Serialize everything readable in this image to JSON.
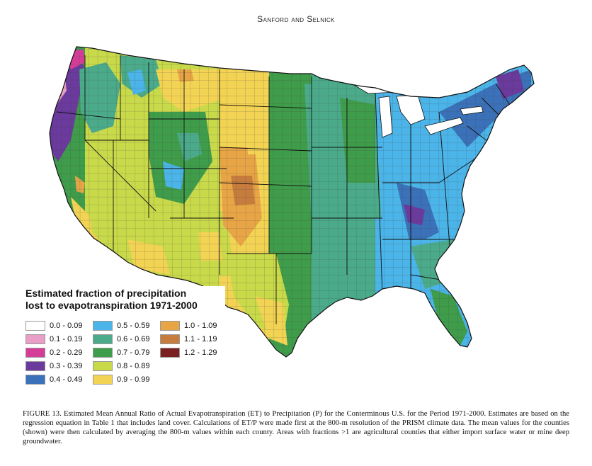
{
  "header": {
    "running_head": "Sanford and Selnick"
  },
  "legend": {
    "title_line1": "Estimated fraction of precipitation",
    "title_line2": "lost to evapotranspiration 1971-2000",
    "items": [
      {
        "label": "0.0 - 0.09",
        "color": "#ffffff"
      },
      {
        "label": "0.1 - 0.19",
        "color": "#e89ec6"
      },
      {
        "label": "0.2 - 0.29",
        "color": "#d43d97"
      },
      {
        "label": "0.3 - 0.39",
        "color": "#6a3a9c"
      },
      {
        "label": "0.4 - 0.49",
        "color": "#3a71b8"
      },
      {
        "label": "0.5 - 0.59",
        "color": "#4bb4e8"
      },
      {
        "label": "0.6 - 0.69",
        "color": "#4aaa8a"
      },
      {
        "label": "0.7 - 0.79",
        "color": "#3f9c4a"
      },
      {
        "label": "0.8 - 0.89",
        "color": "#c8d94a"
      },
      {
        "label": "0.9 - 0.99",
        "color": "#f3d353"
      },
      {
        "label": "1.0 - 1.09",
        "color": "#e8a546"
      },
      {
        "label": "1.1 - 1.19",
        "color": "#c67c3d"
      },
      {
        "label": "1.2 - 1.29",
        "color": "#7a2020"
      }
    ]
  },
  "caption": {
    "text": "FIGURE 13. Estimated Mean Annual Ratio of Actual Evapotranspiration (ET) to Precipitation (P) for the Conterminous U.S. for the Period 1971-2000. Estimates are based on the regression equation in Table 1 that includes land cover. Calculations of ET/P were made first at the 800-m resolution of the PRISM climate data. The mean values for the counties (shown) were then calculated by averaging the 800-m values within each county. Areas with fractions >1 are agricultural counties that either import surface water or mine deep groundwater."
  },
  "colors": {
    "county_border": "#444444",
    "state_border": "#111111",
    "lake": "#ffffff"
  }
}
